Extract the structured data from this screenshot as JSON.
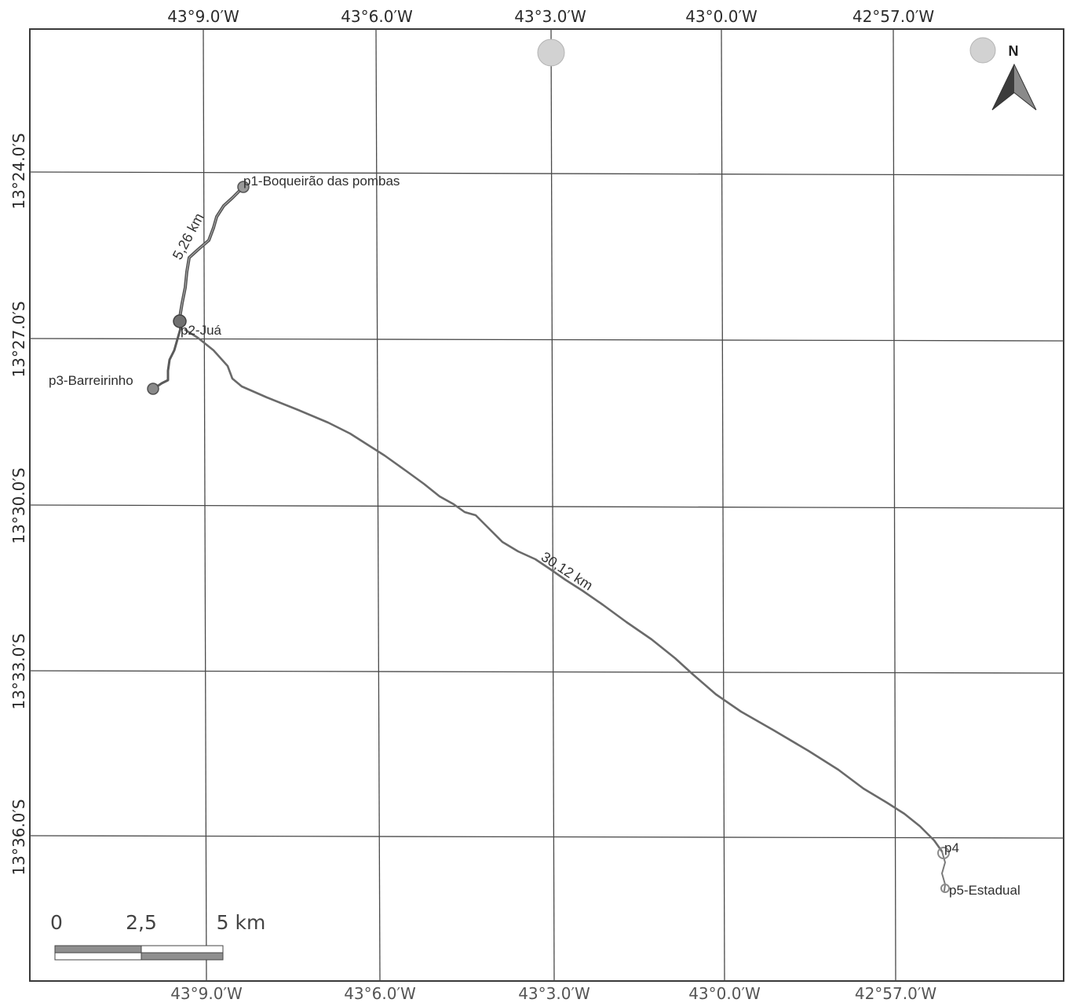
{
  "map": {
    "longitude_labels_top": [
      "43°9.0′W",
      "43°6.0′W",
      "43°3.0′W",
      "43°0.0′W",
      "42°57.0′W"
    ],
    "longitude_labels_bottom": [
      "43°9.0′W",
      "43°6.0′W",
      "43°3.0′W",
      "43°0.0′W",
      "42°57.0′W"
    ],
    "latitude_labels": [
      "13°24.0′S",
      "13°27.0′S",
      "13°30.0′S",
      "13°33.0′S",
      "13°36.0′S"
    ],
    "points": [
      {
        "id": "p1",
        "label": "p1-Boqueirão das pombas"
      },
      {
        "id": "p2",
        "label": "p2-Juá"
      },
      {
        "id": "p3",
        "label": "p3-Barreirinho"
      },
      {
        "id": "p4",
        "label": "p4"
      },
      {
        "id": "p5",
        "label": "p5-Estadual"
      }
    ],
    "route_distances": [
      "5,26 km",
      "30,12 km"
    ],
    "north_arrow_label": "N",
    "scale_bar": {
      "labels": [
        "0",
        "2,5",
        "5 km"
      ]
    },
    "colors": {
      "frame": "#3a3a3a",
      "grid": "#4a4a4a",
      "route": "#5a5a5a",
      "marker": "#7a7a7a"
    }
  }
}
